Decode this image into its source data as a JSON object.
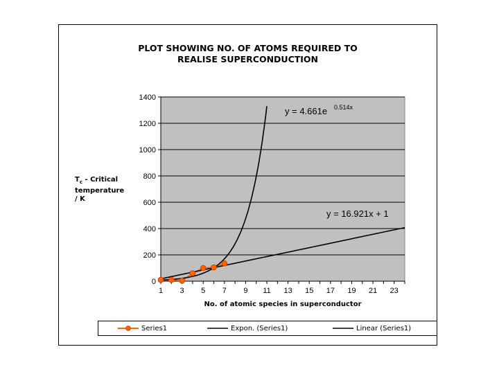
{
  "chart_data": {
    "type": "scatter",
    "title_lines": [
      "PLOT SHOWING NO. OF ATOMS REQUIRED TO",
      "REALISE SUPERCONDUCTION"
    ],
    "ylabel_lines": [
      "Tc - Critical",
      "temperature",
      "/ K"
    ],
    "xlabel": "No. of atomic species in superconductor",
    "xlim": [
      1,
      24
    ],
    "ylim": [
      0,
      1400
    ],
    "x_ticks": [
      1,
      3,
      5,
      7,
      9,
      11,
      13,
      15,
      17,
      19,
      21,
      23
    ],
    "y_ticks": [
      0,
      200,
      400,
      600,
      800,
      1000,
      1200,
      1400
    ],
    "grid": "horizontal",
    "plot_background": "#c0c0c0",
    "series": [
      {
        "name": "Series1",
        "color": "#ff6600",
        "points": [
          [
            1,
            10
          ],
          [
            2,
            10
          ],
          [
            3,
            4
          ],
          [
            4,
            60
          ],
          [
            5,
            100
          ],
          [
            6,
            105
          ],
          [
            7,
            135
          ]
        ]
      }
    ],
    "trendlines": [
      {
        "name": "Expon. (Series1)",
        "kind": "exponential",
        "a": 4.661,
        "b": 0.514,
        "x_range": [
          1,
          11
        ],
        "color": "#000000",
        "equation": "y = 4.661e",
        "equation_exp": "0.514x"
      },
      {
        "name": "Linear (Series1)",
        "kind": "linear",
        "slope": 16.921,
        "intercept": 1,
        "x_range": [
          1,
          24
        ],
        "color": "#000000",
        "equation": "y = 16.921x + 1"
      }
    ],
    "legend": {
      "position": "bottom",
      "entries": [
        "Series1",
        "Expon. (Series1)",
        "Linear (Series1)"
      ]
    }
  }
}
